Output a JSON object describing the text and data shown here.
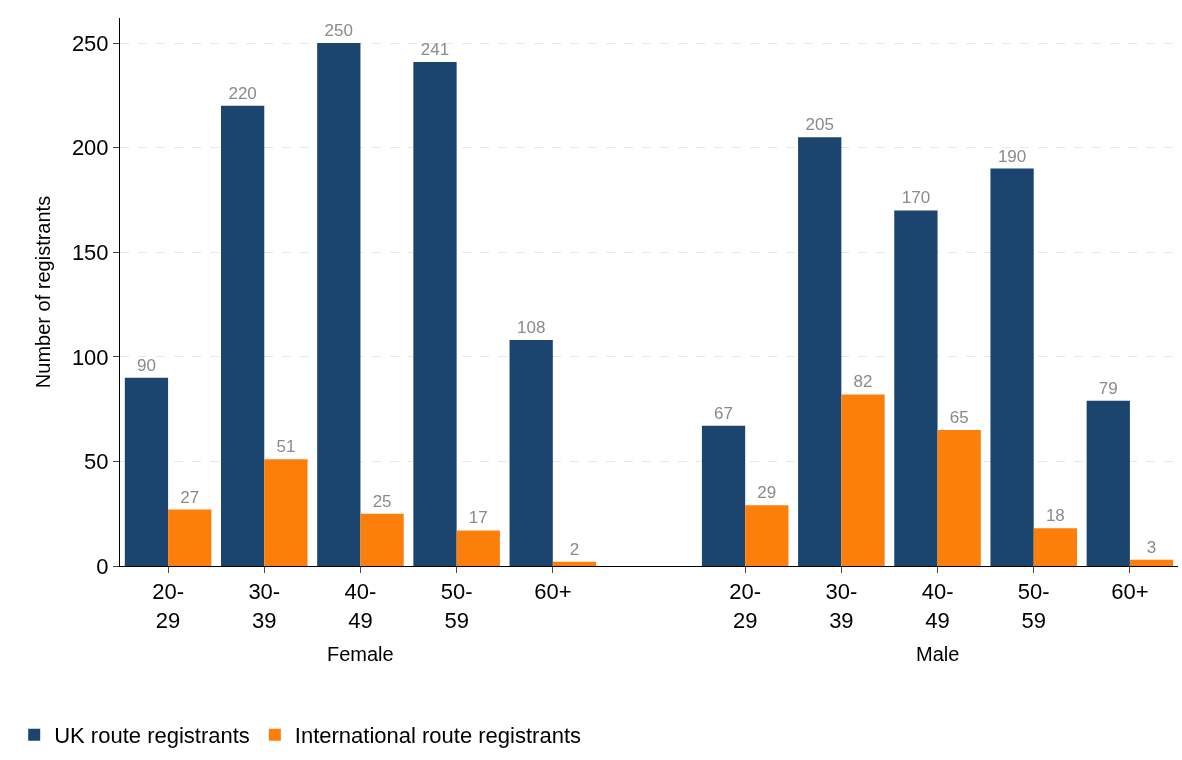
{
  "chart_data": {
    "type": "bar",
    "ylabel": "Number of registrants",
    "categories": [
      "20-29",
      "30-39",
      "40-49",
      "50-59",
      "60+",
      null,
      "20-29",
      "30-39",
      "40-49",
      "50-59",
      "60+"
    ],
    "series": [
      {
        "name": "UK route registrants",
        "color": "#1b456e",
        "values": [
          90,
          220,
          250,
          241,
          108,
          null,
          67,
          205,
          170,
          190,
          79
        ]
      },
      {
        "name": "International route registrants",
        "color": "#fd7f0b",
        "values": [
          27,
          51,
          25,
          17,
          2,
          null,
          29,
          82,
          65,
          18,
          3
        ]
      }
    ],
    "annotations": [
      "Female",
      "Male"
    ],
    "ylim": [
      0,
      262
    ],
    "yticks": [
      0,
      50,
      100,
      150,
      200,
      250
    ],
    "grid": "y",
    "legend": "bottom left",
    "data_labels": true
  }
}
